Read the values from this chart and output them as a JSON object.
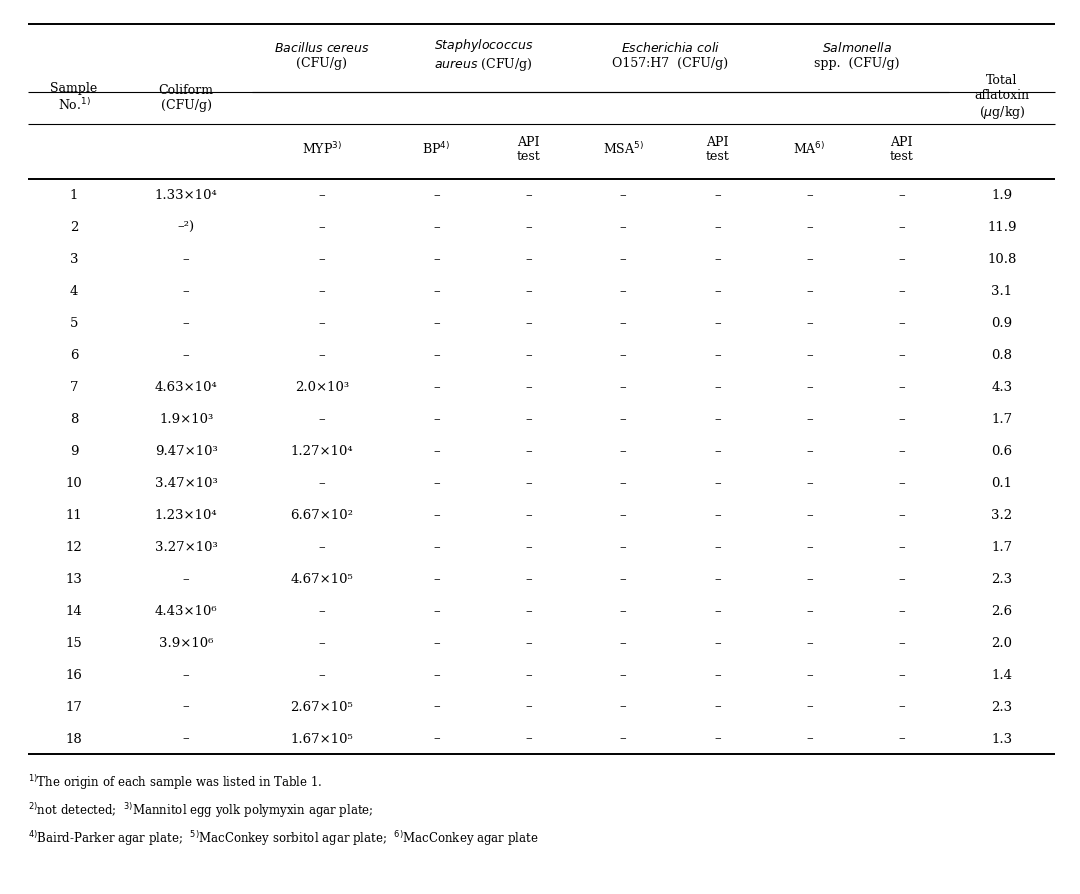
{
  "rows": [
    [
      "1",
      "1.33×10⁴",
      "–",
      "–",
      "–",
      "–",
      "–",
      "–",
      "–",
      "1.9"
    ],
    [
      "2",
      "–²)",
      "–",
      "–",
      "–",
      "–",
      "–",
      "–",
      "–",
      "11.9"
    ],
    [
      "3",
      "–",
      "–",
      "–",
      "–",
      "–",
      "–",
      "–",
      "–",
      "10.8"
    ],
    [
      "4",
      "–",
      "–",
      "–",
      "–",
      "–",
      "–",
      "–",
      "–",
      "3.1"
    ],
    [
      "5",
      "–",
      "–",
      "–",
      "–",
      "–",
      "–",
      "–",
      "–",
      "0.9"
    ],
    [
      "6",
      "–",
      "–",
      "–",
      "–",
      "–",
      "–",
      "–",
      "–",
      "0.8"
    ],
    [
      "7",
      "4.63×10⁴",
      "2.0×10³",
      "–",
      "–",
      "–",
      "–",
      "–",
      "–",
      "4.3"
    ],
    [
      "8",
      "1.9×10³",
      "–",
      "–",
      "–",
      "–",
      "–",
      "–",
      "–",
      "1.7"
    ],
    [
      "9",
      "9.47×10³",
      "1.27×10⁴",
      "–",
      "–",
      "–",
      "–",
      "–",
      "–",
      "0.6"
    ],
    [
      "10",
      "3.47×10³",
      "–",
      "–",
      "–",
      "–",
      "–",
      "–",
      "–",
      "0.1"
    ],
    [
      "11",
      "1.23×10⁴",
      "6.67×10²",
      "–",
      "–",
      "–",
      "–",
      "–",
      "–",
      "3.2"
    ],
    [
      "12",
      "3.27×10³",
      "–",
      "–",
      "–",
      "–",
      "–",
      "–",
      "–",
      "1.7"
    ],
    [
      "13",
      "–",
      "4.67×10⁵",
      "–",
      "–",
      "–",
      "–",
      "–",
      "–",
      "2.3"
    ],
    [
      "14",
      "4.43×10⁶",
      "–",
      "–",
      "–",
      "–",
      "–",
      "–",
      "–",
      "2.6"
    ],
    [
      "15",
      "3.9×10⁶",
      "–",
      "–",
      "–",
      "–",
      "–",
      "–",
      "–",
      "2.0"
    ],
    [
      "16",
      "–",
      "–",
      "–",
      "–",
      "–",
      "–",
      "–",
      "–",
      "1.4"
    ],
    [
      "17",
      "–",
      "2.67×10⁵",
      "–",
      "–",
      "–",
      "–",
      "–",
      "–",
      "2.3"
    ],
    [
      "18",
      "–",
      "1.67×10⁵",
      "–",
      "–",
      "–",
      "–",
      "–",
      "–",
      "1.3"
    ]
  ],
  "footnotes": [
    "1)The origin of each sample was listed in Table 1.",
    "2)not detected;  3)Mannitol egg yolk polymyxin agar plate;",
    "4)Baird-Parker agar plate;  5)MacConkey sorbitol agar plate;  6)MacConkey agar plate"
  ],
  "footnote_supers": [
    [
      "1)",
      "2)",
      "3)",
      "4)",
      "5)",
      "6)"
    ]
  ],
  "bg_color": "#ffffff",
  "text_color": "#000000",
  "lw_thick": 1.4,
  "lw_thin": 0.8,
  "fs_header": 9.0,
  "fs_data": 9.5,
  "fs_footnote": 8.5
}
